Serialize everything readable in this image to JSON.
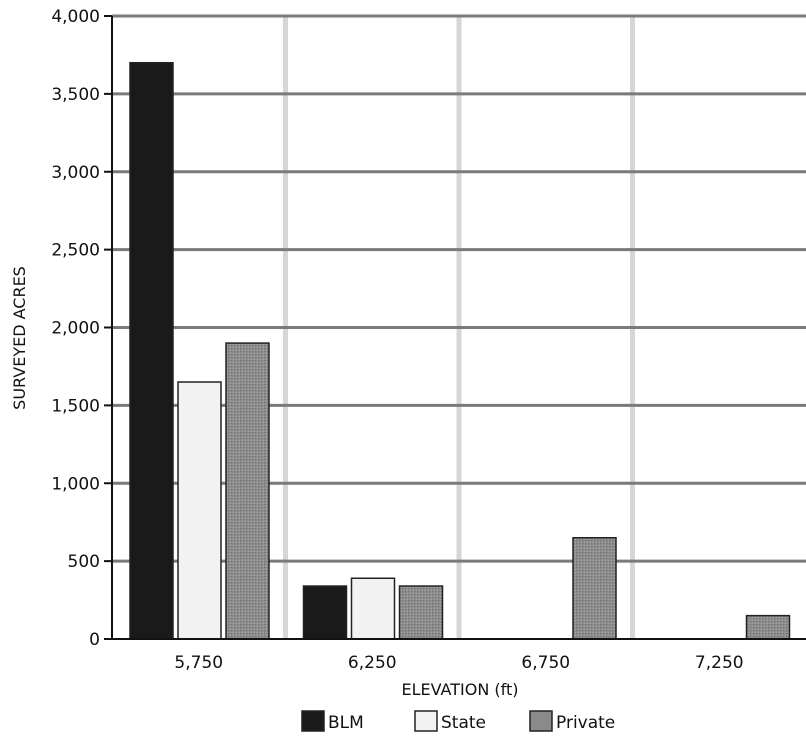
{
  "chart_data": {
    "type": "bar",
    "title": "",
    "xlabel": "ELEVATION (ft)",
    "ylabel": "SURVEYED ACRES",
    "categories": [
      "5,750",
      "6,250",
      "6,750",
      "7,250"
    ],
    "ylim": [
      0,
      4000
    ],
    "yticks": [
      0,
      500,
      1000,
      1500,
      2000,
      2500,
      3000,
      3500,
      4000
    ],
    "ytick_labels": [
      "0",
      "500",
      "1,000",
      "1,500",
      "2,000",
      "2,500",
      "3,000",
      "3,500",
      "4,000"
    ],
    "grid": true,
    "legend_position": "bottom",
    "series": [
      {
        "name": "BLM",
        "values": [
          3700,
          340,
          0,
          0
        ],
        "color": "#1a1a1a"
      },
      {
        "name": "State",
        "values": [
          1650,
          390,
          0,
          0
        ],
        "color": "#f2f2f2"
      },
      {
        "name": "Private",
        "values": [
          1900,
          340,
          650,
          150
        ],
        "color": "#8a8a8a"
      }
    ]
  }
}
